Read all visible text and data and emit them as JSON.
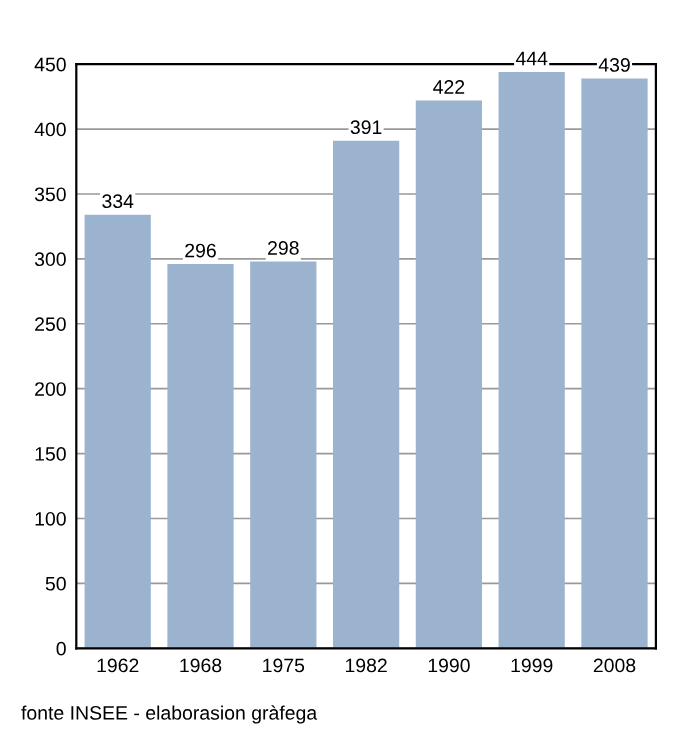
{
  "chart_data": {
    "type": "bar",
    "categories": [
      "1962",
      "1968",
      "1975",
      "1982",
      "1990",
      "1999",
      "2008"
    ],
    "values": [
      334,
      296,
      298,
      391,
      422,
      444,
      439
    ],
    "color": "#9bb3cf",
    "ylim": [
      0,
      450
    ],
    "yticks": [
      0,
      50,
      100,
      150,
      200,
      250,
      300,
      350,
      400,
      450
    ],
    "grid": "y",
    "data_labels": true,
    "annotations": [
      "fonte INSEE - elaborasion gràfega"
    ]
  }
}
